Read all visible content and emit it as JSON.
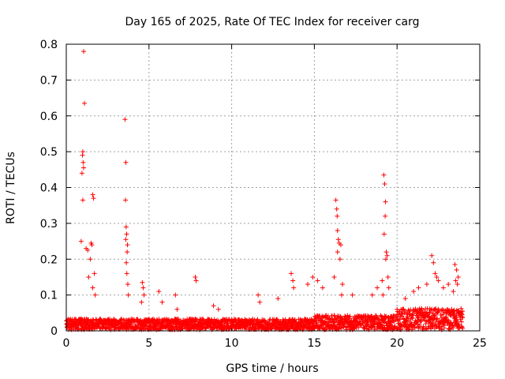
{
  "chart_data": {
    "type": "scatter",
    "title": "Day 165 of 2025, Rate Of TEC Index for receiver carg",
    "xlabel": "GPS time / hours",
    "ylabel": "ROTI / TECUs",
    "xlim": [
      0,
      25
    ],
    "ylim": [
      0,
      0.8
    ],
    "xticks": [
      "0",
      "5",
      "10",
      "15",
      "20",
      "25"
    ],
    "yticks": [
      "0",
      "0.1",
      "0.2",
      "0.3",
      "0.4",
      "0.5",
      "0.6",
      "0.7",
      "0.8"
    ],
    "grid": true,
    "marker": "+",
    "color": "#ff0000",
    "series": [
      {
        "name": "ROTI",
        "x": [
          1.05,
          1.1,
          1.0,
          0.98,
          1.02,
          1.05,
          0.95,
          1.0,
          0.9,
          1.2,
          1.3,
          1.5,
          1.55,
          1.6,
          1.65,
          1.7,
          1.45,
          1.35,
          1.75,
          1.6,
          3.55,
          3.6,
          3.58,
          3.62,
          3.65,
          3.6,
          3.7,
          3.68,
          3.63,
          3.66,
          3.72,
          3.75,
          4.6,
          4.65,
          4.7,
          4.55,
          5.6,
          5.8,
          6.6,
          6.7,
          7.8,
          7.85,
          8.9,
          9.2,
          11.6,
          11.7,
          12.8,
          13.6,
          13.7,
          13.75,
          14.6,
          14.9,
          15.2,
          15.5,
          16.3,
          16.35,
          16.38,
          16.4,
          16.45,
          16.5,
          16.4,
          16.55,
          16.6,
          16.2,
          16.7,
          16.65,
          17.3,
          18.5,
          18.8,
          19.2,
          19.25,
          19.3,
          19.28,
          19.22,
          19.35,
          19.4,
          19.32,
          19.45,
          19.1,
          19.5,
          19.15,
          20.5,
          21.0,
          21.3,
          21.8,
          22.1,
          22.2,
          22.3,
          22.4,
          22.5,
          22.8,
          23.1,
          23.5,
          23.6,
          23.7,
          23.55,
          23.4,
          23.65
        ],
        "y": [
          0.78,
          0.635,
          0.5,
          0.49,
          0.47,
          0.455,
          0.44,
          0.365,
          0.25,
          0.23,
          0.225,
          0.245,
          0.24,
          0.38,
          0.37,
          0.16,
          0.2,
          0.15,
          0.1,
          0.12,
          0.59,
          0.47,
          0.365,
          0.29,
          0.27,
          0.255,
          0.24,
          0.22,
          0.19,
          0.16,
          0.13,
          0.1,
          0.135,
          0.12,
          0.1,
          0.08,
          0.11,
          0.08,
          0.1,
          0.06,
          0.15,
          0.14,
          0.07,
          0.06,
          0.1,
          0.08,
          0.09,
          0.16,
          0.14,
          0.12,
          0.13,
          0.15,
          0.14,
          0.12,
          0.365,
          0.34,
          0.32,
          0.28,
          0.255,
          0.245,
          0.22,
          0.2,
          0.24,
          0.15,
          0.13,
          0.1,
          0.1,
          0.1,
          0.12,
          0.435,
          0.41,
          0.36,
          0.32,
          0.27,
          0.22,
          0.21,
          0.2,
          0.15,
          0.14,
          0.12,
          0.1,
          0.09,
          0.11,
          0.12,
          0.13,
          0.21,
          0.19,
          0.16,
          0.15,
          0.14,
          0.12,
          0.13,
          0.185,
          0.17,
          0.15,
          0.14,
          0.11,
          0.13
        ]
      }
    ]
  }
}
